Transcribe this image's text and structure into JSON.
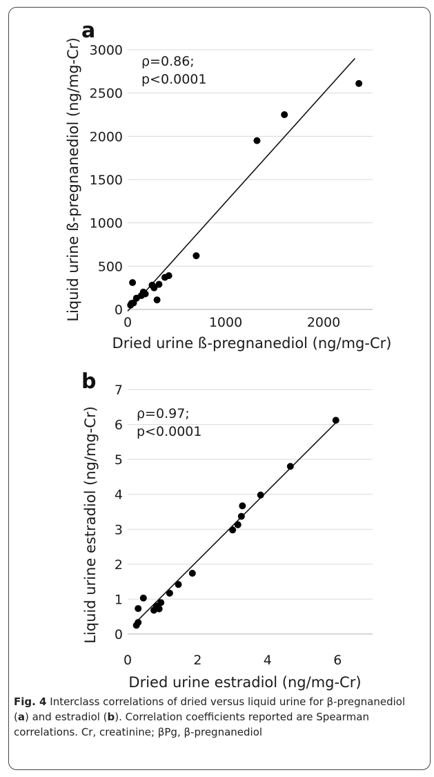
{
  "charts": [
    {
      "panel_label": "a",
      "stat_rho": "ρ=0.86;",
      "stat_p": "p<0.0001",
      "ylabel": "Liquid urine ß-pregnanediol (ng/mg-Cr)",
      "xlabel": "Dried urine ß-pregnanediol (ng/mg-Cr)",
      "y_ticks": [
        "0",
        "500",
        "1000",
        "1500",
        "2000",
        "2500",
        "3000"
      ],
      "x_ticks": [
        "0",
        "1000",
        "2000"
      ]
    },
    {
      "panel_label": "b",
      "stat_rho": "ρ=0.97;",
      "stat_p": "p<0.0001",
      "ylabel": "Liquid urine estradiol (ng/mg-Cr)",
      "xlabel": "Dried urine estradiol (ng/mg-Cr)",
      "y_ticks": [
        "0",
        "1",
        "2",
        "3",
        "4",
        "5",
        "6",
        "7"
      ],
      "x_ticks": [
        "0",
        "2",
        "4",
        "6"
      ]
    }
  ],
  "chart_data": [
    {
      "type": "scatter",
      "title": "",
      "xlabel": "Dried urine ß-pregnanediol (ng/mg-Cr)",
      "ylabel": "Liquid urine ß-pregnanediol (ng/mg-Cr)",
      "xlim": [
        0,
        2500
      ],
      "ylim": [
        0,
        3000
      ],
      "grid": true,
      "points": [
        {
          "x": 30,
          "y": 50
        },
        {
          "x": 40,
          "y": 70
        },
        {
          "x": 50,
          "y": 310
        },
        {
          "x": 60,
          "y": 75
        },
        {
          "x": 90,
          "y": 130
        },
        {
          "x": 140,
          "y": 160
        },
        {
          "x": 160,
          "y": 200
        },
        {
          "x": 180,
          "y": 180
        },
        {
          "x": 250,
          "y": 280
        },
        {
          "x": 270,
          "y": 250
        },
        {
          "x": 300,
          "y": 110
        },
        {
          "x": 320,
          "y": 290
        },
        {
          "x": 380,
          "y": 370
        },
        {
          "x": 420,
          "y": 390
        },
        {
          "x": 700,
          "y": 620
        },
        {
          "x": 1320,
          "y": 1950
        },
        {
          "x": 1600,
          "y": 2250
        },
        {
          "x": 2360,
          "y": 2610
        }
      ],
      "trendline": [
        [
          0,
          -20
        ],
        [
          2320,
          2900
        ]
      ],
      "annotation": [
        "ρ=0.86;",
        "p<0.0001"
      ]
    },
    {
      "type": "scatter",
      "title": "",
      "xlabel": "Dried urine estradiol (ng/mg-Cr)",
      "ylabel": "Liquid urine estradiol (ng/mg-Cr)",
      "xlim": [
        0,
        7
      ],
      "ylim": [
        0,
        7
      ],
      "grid": true,
      "points": [
        {
          "x": 0.25,
          "y": 0.25
        },
        {
          "x": 0.3,
          "y": 0.33
        },
        {
          "x": 0.3,
          "y": 0.73
        },
        {
          "x": 0.45,
          "y": 1.03
        },
        {
          "x": 0.75,
          "y": 0.68
        },
        {
          "x": 0.82,
          "y": 0.8
        },
        {
          "x": 0.9,
          "y": 0.72
        },
        {
          "x": 0.95,
          "y": 0.9
        },
        {
          "x": 1.2,
          "y": 1.17
        },
        {
          "x": 1.45,
          "y": 1.42
        },
        {
          "x": 1.85,
          "y": 1.74
        },
        {
          "x": 3.0,
          "y": 2.98
        },
        {
          "x": 3.15,
          "y": 3.13
        },
        {
          "x": 3.25,
          "y": 3.37
        },
        {
          "x": 3.28,
          "y": 3.67
        },
        {
          "x": 3.8,
          "y": 3.98
        },
        {
          "x": 4.65,
          "y": 4.8
        },
        {
          "x": 5.95,
          "y": 6.12
        }
      ],
      "trendline": [
        [
          0.25,
          0.35
        ],
        [
          5.95,
          6.05
        ]
      ],
      "annotation": [
        "ρ=0.97;",
        "p<0.0001"
      ]
    }
  ],
  "caption": {
    "label": "Fig. 4",
    "text_part1": "Interclass correlations of dried versus liquid urine for β-pregnanediol (",
    "a": "a",
    "text_part2": ") and estradiol (",
    "b": "b",
    "text_part3": "). Correlation coefficients reported are Spearman correlations. Cr, creatinine; βPg, β-pregnanediol"
  }
}
